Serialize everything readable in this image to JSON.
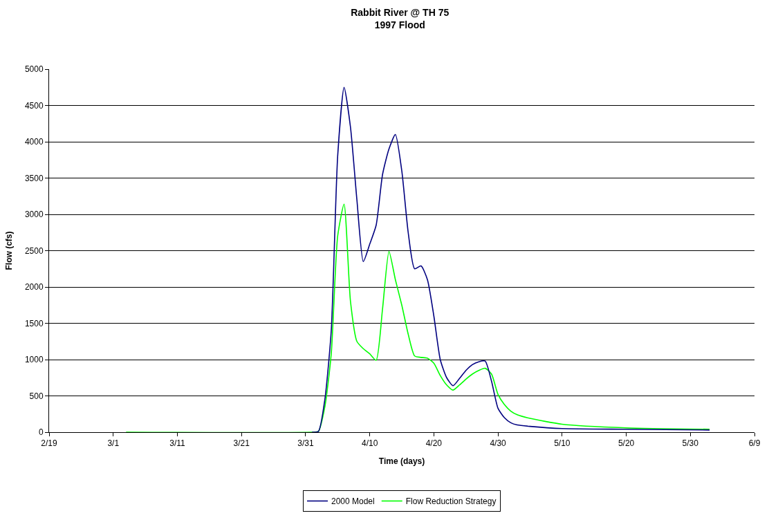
{
  "chart_data": {
    "type": "line",
    "title": "Rabbit River @ TH 75\n1997 Flood",
    "xlabel": "Time (days)",
    "ylabel": "Flow (cfs)",
    "x": [
      "--03-03",
      "--04-01",
      "--04-02",
      "--04-03",
      "--04-04",
      "--04-05",
      "--04-06",
      "--04-07",
      "--04-08",
      "--04-09",
      "--04-10",
      "--04-11",
      "--04-12",
      "--04-13",
      "--04-14",
      "--04-15",
      "--04-16",
      "--04-17",
      "--04-18",
      "--04-19",
      "--04-20",
      "--04-21",
      "--04-22",
      "--04-23",
      "--04-24",
      "--04-25",
      "--04-26",
      "--04-27",
      "--04-28",
      "--04-29",
      "--04-30",
      "--05-01",
      "--05-02",
      "--05-03",
      "--05-05",
      "--05-10",
      "--05-20",
      "--06-02"
    ],
    "series": [
      {
        "name": "2000 Model",
        "color": "#000080",
        "values": [
          null,
          0,
          10,
          450,
          1400,
          3800,
          4750,
          4200,
          3200,
          2350,
          2590,
          2850,
          3550,
          3900,
          4100,
          3600,
          2750,
          2250,
          2290,
          2100,
          1600,
          1000,
          750,
          640,
          740,
          850,
          930,
          970,
          980,
          700,
          330,
          200,
          130,
          100,
          80,
          50,
          40,
          30
        ]
      },
      {
        "name": "Flow Reduction Strategy",
        "color": "#00ff00",
        "values": [
          0,
          0,
          10,
          350,
          1080,
          2700,
          3140,
          1800,
          1250,
          1150,
          1080,
          990,
          1700,
          2490,
          2100,
          1750,
          1350,
          1050,
          1030,
          1020,
          950,
          780,
          650,
          580,
          650,
          730,
          800,
          850,
          880,
          800,
          520,
          380,
          290,
          240,
          190,
          110,
          60,
          40
        ]
      }
    ],
    "xlim": [
      "--02-19",
      "--06-09"
    ],
    "xticks": [
      {
        "value": "--02-19",
        "label": "2/19"
      },
      {
        "value": "--03-01",
        "label": "3/1"
      },
      {
        "value": "--03-11",
        "label": "3/11"
      },
      {
        "value": "--03-21",
        "label": "3/21"
      },
      {
        "value": "--03-31",
        "label": "3/31"
      },
      {
        "value": "--04-10",
        "label": "4/10"
      },
      {
        "value": "--04-20",
        "label": "4/20"
      },
      {
        "value": "--04-30",
        "label": "4/30"
      },
      {
        "value": "--05-10",
        "label": "5/10"
      },
      {
        "value": "--05-20",
        "label": "5/20"
      },
      {
        "value": "--05-30",
        "label": "5/30"
      },
      {
        "value": "--06-09",
        "label": "6/9"
      }
    ],
    "ylim": [
      0,
      5000
    ],
    "yticks": [
      0,
      500,
      1000,
      1500,
      2000,
      2500,
      3000,
      3500,
      4000,
      4500,
      5000
    ],
    "grid": "y",
    "legend": "bottom",
    "marker": "none",
    "line_style": "solid"
  }
}
